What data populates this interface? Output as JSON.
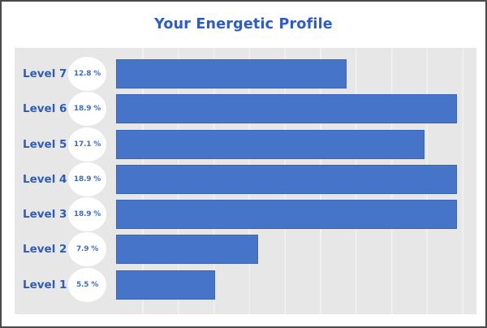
{
  "title": "Your Energetic Profile",
  "colors": {
    "title_text": "#2a5bd0",
    "category_label_text": "#2f5cb7",
    "bar_fill": "#4674c9",
    "panel_background": "#e7e7e7",
    "gridline": "#f2f2f2",
    "percent_badge_background": "#ffffff",
    "percent_text": "#3f6bc4",
    "frame_border": "#4a4a4a",
    "page_background": "#ffffff"
  },
  "chart_data": {
    "type": "bar",
    "orientation": "horizontal",
    "title": "Your Energetic Profile",
    "categories": [
      "Level 7",
      "Level 6",
      "Level 5",
      "Level 4",
      "Level 3",
      "Level 2",
      "Level 1"
    ],
    "values": [
      12.8,
      18.9,
      17.1,
      18.9,
      18.9,
      7.9,
      5.5
    ],
    "value_labels": [
      "12.8 %",
      "18.9 %",
      "17.1 %",
      "18.9 %",
      "18.9 %",
      "7.9 %",
      "5.5 %"
    ],
    "value_unit": "%",
    "xlabel": "",
    "ylabel": "",
    "xlim": [
      0,
      20
    ],
    "grid": "vertical gridlines every 2%, no tick labels shown",
    "legend": "none"
  }
}
